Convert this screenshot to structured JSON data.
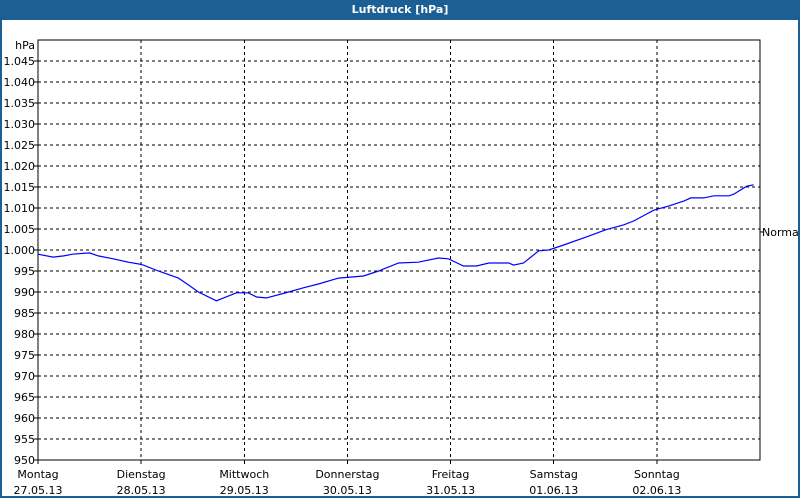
{
  "window": {
    "title": "Luftdruck [hPa]"
  },
  "chart_data": {
    "type": "line",
    "title": "Luftdruck [hPa]",
    "ylabel": "hPa",
    "ylim": [
      950,
      1050
    ],
    "yticks": [
      950,
      955,
      960,
      965,
      970,
      975,
      980,
      985,
      990,
      995,
      1000,
      1005,
      1010,
      1015,
      1020,
      1025,
      1030,
      1035,
      1040,
      1045
    ],
    "ytick_labels": [
      "950",
      "955",
      "960",
      "965",
      "970",
      "975",
      "980",
      "985",
      "990",
      "995",
      "1.000",
      "1.005",
      "1.010",
      "1.015",
      "1.020",
      "1.025",
      "1.030",
      "1.035",
      "1.040",
      "1.045"
    ],
    "xlim": [
      "2013-05-27T00:00",
      "2013-06-03T00:00"
    ],
    "xticks": [
      {
        "date": "2013-05-27T00:00",
        "day": "Montag",
        "label": "27.05.13"
      },
      {
        "date": "2013-05-28T00:00",
        "day": "Dienstag",
        "label": "28.05.13"
      },
      {
        "date": "2013-05-29T00:00",
        "day": "Mittwoch",
        "label": "29.05.13"
      },
      {
        "date": "2013-05-30T00:00",
        "day": "Donnerstag",
        "label": "30.05.13"
      },
      {
        "date": "2013-05-31T00:00",
        "day": "Freitag",
        "label": "31.05.13"
      },
      {
        "date": "2013-06-01T00:00",
        "day": "Samstag",
        "label": "01.06.13"
      },
      {
        "date": "2013-06-02T00:00",
        "day": "Sonntag",
        "label": "02.06.13"
      }
    ],
    "reference": {
      "label": "Normal",
      "value": 1004.3
    },
    "grid": true,
    "line_color": "#0000ff",
    "title_bar_color": "#1c5f94",
    "x": [
      "2013-05-27T00:00",
      "2013-05-27T03:30",
      "2013-05-27T06:00",
      "2013-05-27T08:00",
      "2013-05-27T12:00",
      "2013-05-27T14:00",
      "2013-05-27T17:30",
      "2013-05-27T21:00",
      "2013-05-27T23:20",
      "2013-05-28T00:30",
      "2013-05-28T04:00",
      "2013-05-28T08:40",
      "2013-05-28T11:00",
      "2013-05-28T13:20",
      "2013-05-28T17:30",
      "2013-05-28T22:10",
      "2013-05-29T00:55",
      "2013-05-29T02:50",
      "2013-05-29T05:10",
      "2013-05-29T10:20",
      "2013-05-29T13:45",
      "2013-05-29T17:15",
      "2013-05-29T21:55",
      "2013-05-30T03:45",
      "2013-05-30T07:15",
      "2013-05-30T11:55",
      "2013-05-30T16:30",
      "2013-05-30T21:10",
      "2013-05-30T23:30",
      "2013-05-31T03:00",
      "2013-05-31T06:00",
      "2013-05-31T08:55",
      "2013-05-31T13:30",
      "2013-05-31T14:40",
      "2013-05-31T17:00",
      "2013-05-31T20:30",
      "2013-05-31T22:50",
      "2013-06-01T02:20",
      "2013-06-01T08:10",
      "2013-06-01T12:05",
      "2013-06-01T16:20",
      "2013-06-01T18:35",
      "2013-06-01T23:20",
      "2013-06-02T02:50",
      "2013-06-02T06:20",
      "2013-06-02T07:55",
      "2013-06-02T10:55",
      "2013-06-02T13:15",
      "2013-06-02T16:50",
      "2013-06-02T17:55",
      "2013-06-02T20:55",
      "2013-06-02T22:30"
    ],
    "series": [
      {
        "values": [
          999.0,
          998.3,
          998.6,
          999.0,
          999.3,
          998.6,
          997.9,
          997.1,
          996.7,
          996.4,
          995.0,
          993.3,
          991.7,
          990.0,
          987.9,
          989.8,
          989.8,
          988.8,
          988.6,
          990.0,
          991.0,
          991.9,
          993.3,
          993.8,
          995.0,
          996.9,
          997.1,
          998.1,
          997.9,
          996.2,
          996.2,
          996.9,
          996.9,
          996.4,
          996.9,
          999.8,
          1000.0,
          1001.2,
          1003.3,
          1004.8,
          1006.0,
          1006.9,
          1009.5,
          1010.5,
          1011.7,
          1012.4,
          1012.4,
          1012.9,
          1012.9,
          1013.3,
          1015.2,
          1015.5
        ]
      }
    ]
  }
}
